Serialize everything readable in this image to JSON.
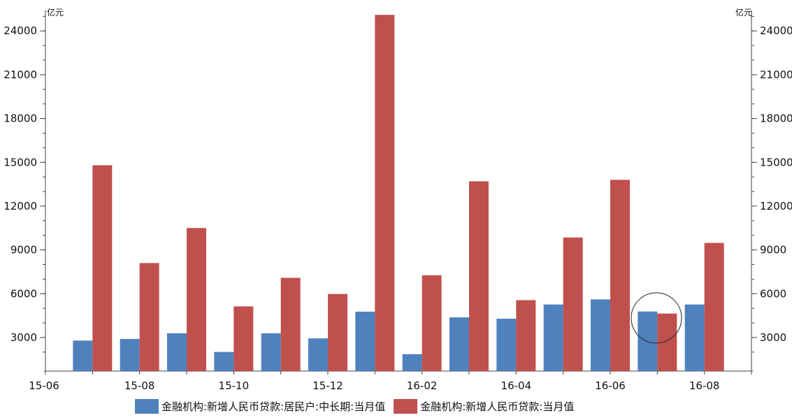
{
  "chart_data": {
    "type": "bar",
    "unit_left": "亿元",
    "unit_right": "亿元",
    "x_tick_labels": [
      "15-06",
      "15-08",
      "15-10",
      "15-12",
      "16-02",
      "16-04",
      "16-06",
      "16-08"
    ],
    "y_ticks": [
      3000,
      6000,
      9000,
      12000,
      15000,
      18000,
      21000,
      24000
    ],
    "ylim": [
      700,
      25400
    ],
    "categories": [
      "15-07",
      "15-08",
      "15-09",
      "15-10",
      "15-11",
      "15-12",
      "16-01",
      "16-02",
      "16-03",
      "16-04",
      "16-05",
      "16-06",
      "16-07",
      "16-08"
    ],
    "series": [
      {
        "name": "金融机构:新增人民币贷款:居民户:中长期:当月值",
        "color": "#4F81BD",
        "values": [
          2790,
          2900,
          3290,
          2010,
          3290,
          2940,
          4770,
          1860,
          4380,
          4290,
          5260,
          5610,
          4780,
          5260
        ]
      },
      {
        "name": "金融机构:新增人民币贷款:当月值",
        "color": "#C0504D",
        "values": [
          14800,
          8100,
          10500,
          5130,
          7090,
          5980,
          25100,
          7260,
          13700,
          5560,
          9850,
          13800,
          4640,
          9480
        ]
      }
    ],
    "grid": false,
    "legend_position": "bottom",
    "annotation": "circle-around-16-07"
  }
}
